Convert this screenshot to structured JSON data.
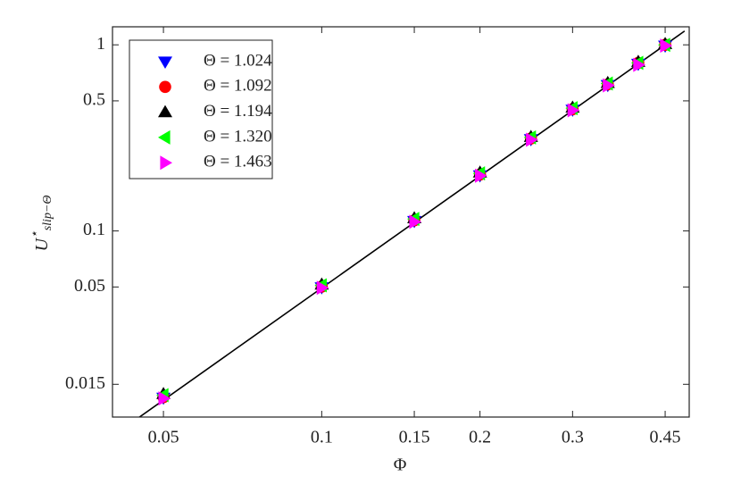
{
  "chart_data": {
    "type": "scatter",
    "xlabel": "Φ",
    "ylabel": {
      "base": "U",
      "sup": "⋆",
      "sub": "slip−Θ"
    },
    "xscale": "log",
    "yscale": "log",
    "xlim": [
      0.04,
      0.5
    ],
    "ylim": [
      0.01,
      1.25
    ],
    "xticks": [
      0.05,
      0.1,
      0.15,
      0.2,
      0.3,
      0.45
    ],
    "yticks": [
      0.015,
      0.05,
      0.1,
      0.5,
      1
    ],
    "legend": "upper left",
    "x": [
      0.05,
      0.1,
      0.15,
      0.2,
      0.25,
      0.3,
      0.35,
      0.4,
      0.45
    ],
    "series": [
      {
        "name": "Θ = 1.024",
        "color": "#0000ff",
        "marker": "triangle-down",
        "values": [
          0.0127,
          0.0498,
          0.113,
          0.199,
          0.311,
          0.448,
          0.608,
          0.79,
          0.99
        ]
      },
      {
        "name": "Θ = 1.092",
        "color": "#ff0000",
        "marker": "circle",
        "values": [
          0.0128,
          0.0502,
          0.114,
          0.201,
          0.314,
          0.451,
          0.613,
          0.8,
          1.0
        ]
      },
      {
        "name": "Θ = 1.194",
        "color": "#000000",
        "marker": "triangle-up",
        "values": [
          0.0133,
          0.0515,
          0.117,
          0.206,
          0.32,
          0.46,
          0.624,
          0.81,
          1.01
        ]
      },
      {
        "name": "Θ = 1.320",
        "color": "#00ff00",
        "marker": "triangle-left",
        "values": [
          0.0131,
          0.051,
          0.116,
          0.204,
          0.318,
          0.457,
          0.62,
          0.8,
          1.0
        ]
      },
      {
        "name": "Θ = 1.463",
        "color": "#ff00ff",
        "marker": "triangle-right",
        "values": [
          0.0126,
          0.0495,
          0.112,
          0.198,
          0.309,
          0.445,
          0.605,
          0.78,
          0.99
        ]
      }
    ],
    "fit_line": {
      "x": [
        0.0448,
        0.49
      ],
      "y": [
        0.0099,
        1.186
      ],
      "color": "#000000"
    }
  }
}
